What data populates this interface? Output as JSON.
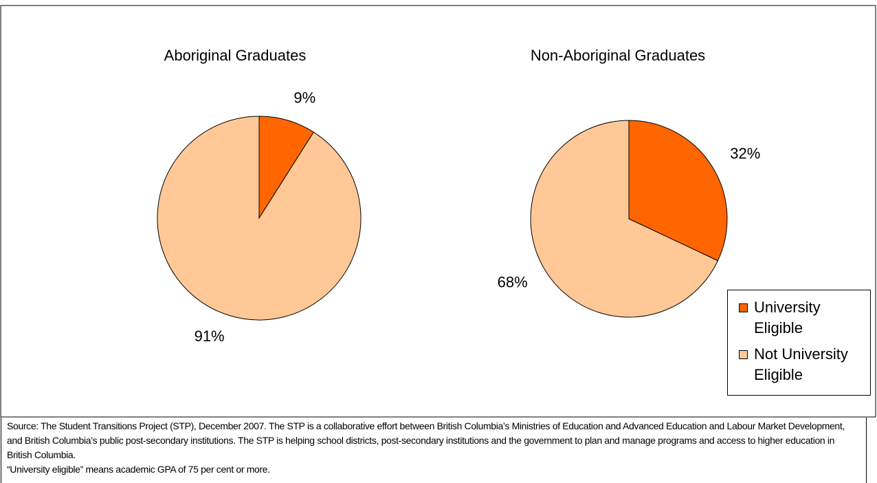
{
  "chart_data": [
    {
      "type": "pie",
      "title": "Aboriginal Graduates",
      "categories": [
        "University Eligible",
        "Not University Eligible"
      ],
      "values": [
        9,
        91
      ],
      "value_labels": [
        "9%",
        "91%"
      ],
      "colors": [
        "#ff6600",
        "#ffc896"
      ],
      "legend": "lower right"
    },
    {
      "type": "pie",
      "title": "Non-Aboriginal Graduates",
      "categories": [
        "University Eligible",
        "Not University Eligible"
      ],
      "values": [
        32,
        68
      ],
      "value_labels": [
        "32%",
        "68%"
      ],
      "colors": [
        "#ff6600",
        "#ffc896"
      ],
      "legend": "lower right"
    }
  ],
  "notes": [
    "Source: The Student Transitions Project (STP), December 2007. The STP is a collaborative effort between British Columbia’s Ministries of Education and Advanced Education and Labour Market Development, and British Columbia’s public post-secondary institutions. The STP is helping school districts, post-secondary institutions and the government to plan and manage programs and access to higher education in British Columbia.",
    "“University eligible” means academic GPA of 75 per cent or more."
  ]
}
